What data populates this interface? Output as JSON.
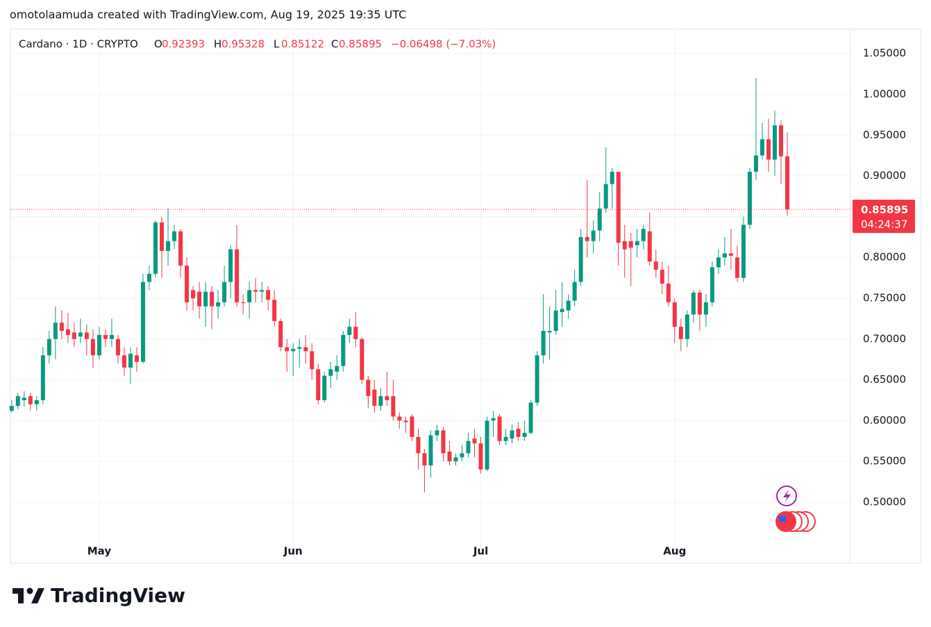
{
  "attribution": "omotolaamuda created with TradingView.com, Aug 19, 2025 19:35 UTC",
  "brand": "TradingView",
  "chart_data": {
    "type": "candlestick",
    "title": "Cardano · 1D · CRYPTO",
    "ohlc_labels": [
      "O",
      "H",
      "L",
      "C"
    ],
    "change": "−0.06498 (−7.03%)",
    "countdown": "04:24:37",
    "up_color": "#089981",
    "down_color": "#f23645",
    "grid": true,
    "last_price_line": true,
    "xlim": [
      -0.2,
      134.1
    ],
    "xticks": [
      {
        "value": 14,
        "label": "May"
      },
      {
        "value": 45,
        "label": "Jun"
      },
      {
        "value": 75,
        "label": "Jul"
      },
      {
        "value": 106,
        "label": "Aug"
      }
    ],
    "ylim": [
      0.4252,
      1.0799
    ],
    "yticks": [
      {
        "value": 0.5,
        "label": "0.50000"
      },
      {
        "value": 0.55,
        "label": "0.55000"
      },
      {
        "value": 0.6,
        "label": "0.60000"
      },
      {
        "value": 0.65,
        "label": "0.65000"
      },
      {
        "value": 0.7,
        "label": "0.70000"
      },
      {
        "value": 0.75,
        "label": "0.75000"
      },
      {
        "value": 0.8,
        "label": "0.80000"
      },
      {
        "value": 0.85,
        "label": "0.85000"
      },
      {
        "value": 0.9,
        "label": "0.90000"
      },
      {
        "value": 0.95,
        "label": "0.95000"
      },
      {
        "value": 1.0,
        "label": "1.00000"
      },
      {
        "value": 1.05,
        "label": "1.05000"
      }
    ],
    "open": [
      0.612,
      0.618,
      0.625,
      0.63,
      0.62,
      0.625,
      0.68,
      0.7,
      0.72,
      0.712,
      0.708,
      0.703,
      0.708,
      0.7,
      0.68,
      0.705,
      0.7,
      0.7,
      0.68,
      0.665,
      0.68,
      0.672,
      0.77,
      0.78,
      0.843,
      0.808,
      0.82,
      0.832,
      0.79,
      0.76,
      0.758,
      0.74,
      0.758,
      0.74,
      0.745,
      0.77,
      0.81,
      0.745,
      0.745,
      0.76,
      0.758,
      0.76,
      0.748,
      0.722,
      0.69,
      0.685,
      0.688,
      0.69,
      0.685,
      0.663,
      0.625,
      0.655,
      0.66,
      0.667,
      0.705,
      0.715,
      0.7,
      0.65,
      0.638,
      0.618,
      0.63,
      0.63,
      0.605,
      0.6,
      0.605,
      0.58,
      0.56,
      0.545,
      0.582,
      0.588,
      0.562,
      0.55,
      0.555,
      0.56,
      0.578,
      0.572,
      0.54,
      0.6,
      0.605,
      0.575,
      0.578,
      0.59,
      0.58,
      0.585,
      0.622,
      0.68,
      0.708,
      0.71,
      0.733,
      0.735,
      0.747,
      0.77,
      0.825,
      0.82,
      0.833,
      0.86,
      0.89,
      0.905,
      0.82,
      0.82,
      0.815,
      0.82,
      0.832,
      0.795,
      0.785,
      0.768,
      0.745,
      0.715,
      0.7,
      0.73,
      0.757,
      0.73,
      0.745,
      0.788,
      0.8,
      0.805,
      0.8,
      0.775,
      0.84,
      0.905,
      0.925,
      0.945,
      0.92,
      0.962,
      0.92393
    ],
    "high": [
      0.625,
      0.634,
      0.636,
      0.634,
      0.63,
      0.69,
      0.71,
      0.74,
      0.735,
      0.732,
      0.72,
      0.725,
      0.718,
      0.712,
      0.715,
      0.712,
      0.725,
      0.705,
      0.69,
      0.69,
      0.69,
      0.78,
      0.79,
      0.845,
      0.85,
      0.86,
      0.84,
      0.835,
      0.8,
      0.765,
      0.77,
      0.77,
      0.765,
      0.76,
      0.79,
      0.815,
      0.84,
      0.755,
      0.77,
      0.775,
      0.77,
      0.765,
      0.76,
      0.725,
      0.7,
      0.695,
      0.7,
      0.705,
      0.695,
      0.67,
      0.66,
      0.672,
      0.68,
      0.71,
      0.725,
      0.733,
      0.702,
      0.655,
      0.65,
      0.64,
      0.66,
      0.65,
      0.61,
      0.605,
      0.608,
      0.59,
      0.565,
      0.588,
      0.595,
      0.592,
      0.575,
      0.56,
      0.57,
      0.585,
      0.59,
      0.58,
      0.605,
      0.612,
      0.608,
      0.59,
      0.595,
      0.598,
      0.6,
      0.625,
      0.685,
      0.755,
      0.74,
      0.76,
      0.77,
      0.755,
      0.785,
      0.835,
      0.895,
      0.845,
      0.88,
      0.935,
      0.91,
      0.905,
      0.84,
      0.83,
      0.835,
      0.84,
      0.855,
      0.81,
      0.795,
      0.79,
      0.75,
      0.725,
      0.735,
      0.76,
      0.76,
      0.755,
      0.795,
      0.81,
      0.825,
      0.835,
      0.815,
      0.85,
      0.91,
      1.02,
      0.965,
      0.97,
      0.98,
      0.968,
      0.95328
    ],
    "low": [
      0.61,
      0.614,
      0.617,
      0.612,
      0.612,
      0.62,
      0.67,
      0.675,
      0.7,
      0.695,
      0.69,
      0.695,
      0.68,
      0.665,
      0.675,
      0.69,
      0.69,
      0.67,
      0.655,
      0.645,
      0.66,
      0.67,
      0.76,
      0.775,
      0.775,
      0.79,
      0.81,
      0.775,
      0.735,
      0.735,
      0.725,
      0.715,
      0.712,
      0.725,
      0.74,
      0.75,
      0.74,
      0.73,
      0.725,
      0.745,
      0.745,
      0.735,
      0.715,
      0.685,
      0.66,
      0.655,
      0.665,
      0.67,
      0.65,
      0.62,
      0.622,
      0.64,
      0.65,
      0.66,
      0.695,
      0.69,
      0.645,
      0.615,
      0.61,
      0.612,
      0.618,
      0.6,
      0.59,
      0.585,
      0.575,
      0.54,
      0.512,
      0.53,
      0.575,
      0.55,
      0.545,
      0.545,
      0.55,
      0.555,
      0.555,
      0.535,
      0.538,
      0.58,
      0.57,
      0.57,
      0.572,
      0.575,
      0.575,
      0.583,
      0.618,
      0.67,
      0.675,
      0.705,
      0.715,
      0.725,
      0.74,
      0.765,
      0.8,
      0.805,
      0.82,
      0.855,
      0.86,
      0.79,
      0.775,
      0.765,
      0.8,
      0.81,
      0.79,
      0.775,
      0.755,
      0.74,
      0.695,
      0.685,
      0.69,
      0.72,
      0.71,
      0.715,
      0.74,
      0.78,
      0.79,
      0.785,
      0.77,
      0.77,
      0.835,
      0.895,
      0.92,
      0.905,
      0.9,
      0.89,
      0.85122
    ],
    "close": [
      0.618,
      0.63,
      0.628,
      0.62,
      0.625,
      0.68,
      0.7,
      0.72,
      0.71,
      0.705,
      0.7,
      0.708,
      0.7,
      0.68,
      0.705,
      0.7,
      0.705,
      0.68,
      0.665,
      0.682,
      0.672,
      0.77,
      0.78,
      0.843,
      0.808,
      0.82,
      0.832,
      0.79,
      0.745,
      0.75,
      0.74,
      0.758,
      0.74,
      0.745,
      0.77,
      0.81,
      0.745,
      0.744,
      0.76,
      0.758,
      0.76,
      0.748,
      0.722,
      0.69,
      0.685,
      0.688,
      0.69,
      0.685,
      0.663,
      0.625,
      0.655,
      0.663,
      0.667,
      0.705,
      0.715,
      0.7,
      0.65,
      0.63,
      0.618,
      0.63,
      0.625,
      0.605,
      0.6,
      0.598,
      0.58,
      0.56,
      0.545,
      0.582,
      0.588,
      0.56,
      0.55,
      0.555,
      0.56,
      0.575,
      0.572,
      0.54,
      0.6,
      0.603,
      0.575,
      0.58,
      0.588,
      0.58,
      0.585,
      0.622,
      0.68,
      0.71,
      0.71,
      0.735,
      0.737,
      0.747,
      0.77,
      0.825,
      0.82,
      0.833,
      0.86,
      0.89,
      0.905,
      0.818,
      0.81,
      0.812,
      0.82,
      0.835,
      0.795,
      0.785,
      0.768,
      0.745,
      0.715,
      0.7,
      0.73,
      0.757,
      0.73,
      0.745,
      0.788,
      0.8,
      0.805,
      0.802,
      0.775,
      0.84,
      0.905,
      0.925,
      0.945,
      0.92,
      0.962,
      0.924,
      0.85895
    ]
  }
}
